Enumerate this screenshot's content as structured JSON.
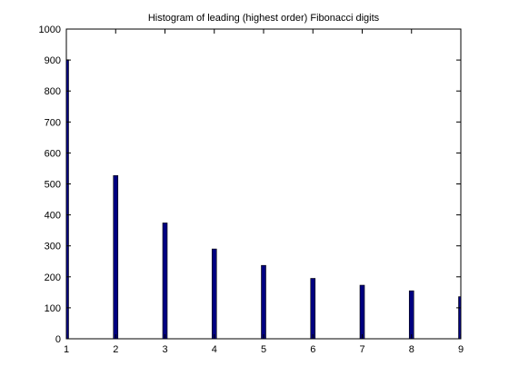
{
  "chart_data": {
    "type": "bar",
    "title": "Histogram of leading (highest order) Fibonacci digits",
    "xlabel": "",
    "ylabel": "",
    "x": [
      1,
      2,
      3,
      4,
      5,
      6,
      7,
      8,
      9
    ],
    "values": [
      901,
      527,
      374,
      290,
      237,
      195,
      173,
      155,
      136
    ],
    "xlim": [
      1,
      9
    ],
    "ylim": [
      0,
      1000
    ],
    "xticks": [
      1,
      2,
      3,
      4,
      5,
      6,
      7,
      8,
      9
    ],
    "yticks": [
      0,
      100,
      200,
      300,
      400,
      500,
      600,
      700,
      800,
      900,
      1000
    ],
    "bar_color": "#000080",
    "grid": false,
    "legend": "none"
  }
}
